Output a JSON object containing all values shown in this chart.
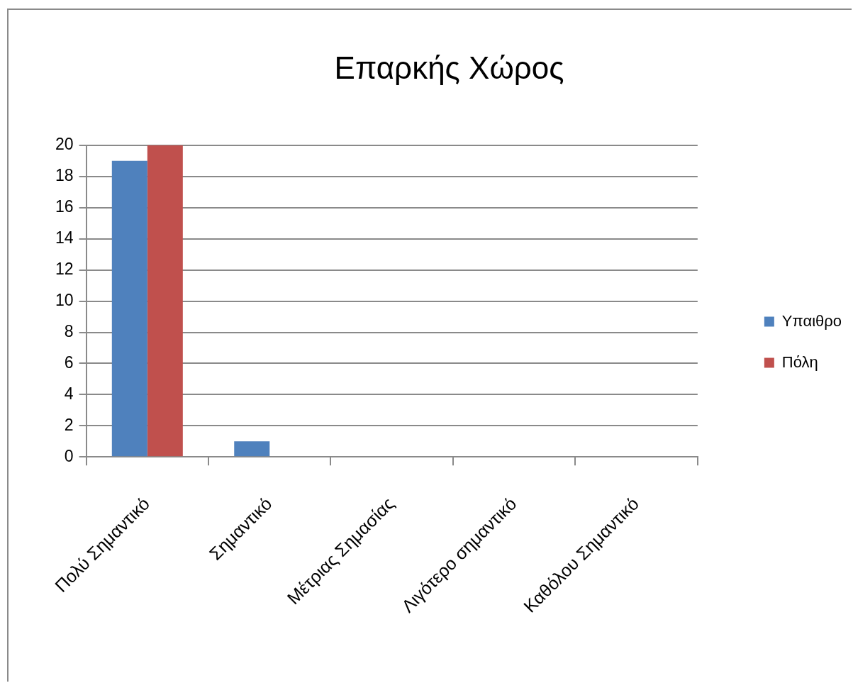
{
  "chart_data": {
    "type": "bar",
    "title": "Επαρκής Χώρος",
    "categories": [
      "Πολύ Σημαντικό",
      "Σημαντικό",
      "Μέτριας Σημασίας",
      "Λιγότερο σημαντικό",
      "Καθόλου Σημαντικό"
    ],
    "series": [
      {
        "name": "Υπαιθρο",
        "color": "#4f81bd",
        "values": [
          19,
          1,
          0,
          0,
          0
        ]
      },
      {
        "name": "Πόλη",
        "color": "#c0504d",
        "values": [
          20,
          0,
          0,
          0,
          0
        ]
      }
    ],
    "ylim": [
      0,
      20
    ],
    "yticks": [
      0,
      2,
      4,
      6,
      8,
      10,
      12,
      14,
      16,
      18,
      20
    ],
    "grid": "y",
    "legend": "right"
  }
}
